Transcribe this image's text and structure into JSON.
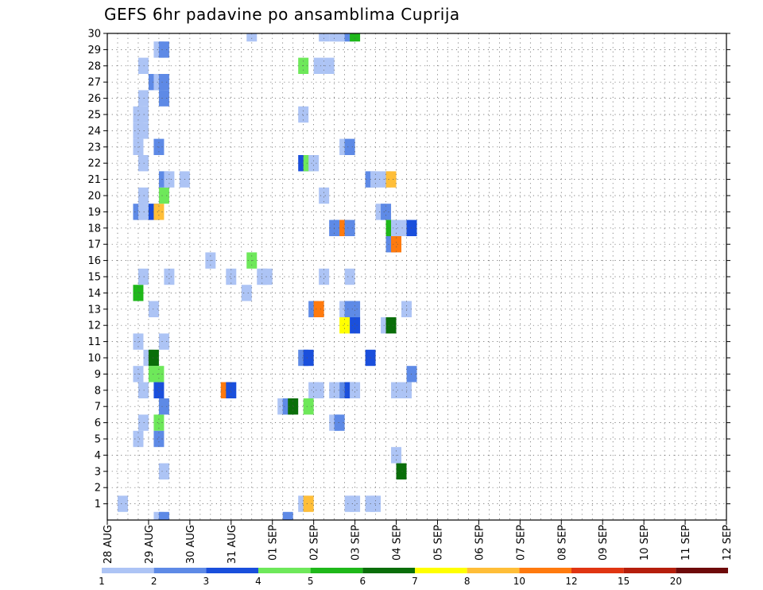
{
  "chart_data": {
    "type": "heatmap",
    "title": "GEFS 6hr padavine po ansamblima Cuprija",
    "x_tick_labels": [
      "28 AUG",
      "29 AUG",
      "30 AUG",
      "31 AUG",
      "01 SEP",
      "02 SEP",
      "03 SEP",
      "04 SEP",
      "05 SEP",
      "06 SEP",
      "07 SEP",
      "08 SEP",
      "09 SEP",
      "10 SEP",
      "11 SEP",
      "12 SEP"
    ],
    "y_tick_labels": [
      "1",
      "2",
      "3",
      "4",
      "5",
      "6",
      "7",
      "8",
      "9",
      "10",
      "11",
      "12",
      "13",
      "14",
      "15",
      "16",
      "17",
      "18",
      "19",
      "20",
      "21",
      "22",
      "23",
      "24",
      "25",
      "26",
      "27",
      "28",
      "29",
      "30"
    ],
    "xlim": [
      0,
      60
    ],
    "ylim": [
      0,
      30
    ],
    "grid": true,
    "colorbar_labels": [
      "1",
      "2",
      "3",
      "4",
      "5",
      "6",
      "7",
      "8",
      "10",
      "12",
      "15",
      "20"
    ],
    "colorbar_colors": [
      "#adc4f5",
      "#5e8ae6",
      "#1a4fdc",
      "#6ee85a",
      "#1fb81a",
      "#0a6e0a",
      "#ffff00",
      "#ffbe38",
      "#ff7a0e",
      "#e03512",
      "#b51e0c",
      "#6e0a0a"
    ],
    "cells": [
      {
        "x": 1.5,
        "y": 1,
        "v": 1
      },
      {
        "x": 3.0,
        "y": 9,
        "v": 1
      },
      {
        "x": 3.0,
        "y": 11,
        "v": 1
      },
      {
        "x": 3.0,
        "y": 24,
        "v": 1
      },
      {
        "x": 3.0,
        "y": 25,
        "v": 1
      },
      {
        "x": 3.0,
        "y": 5,
        "v": 1
      },
      {
        "x": 3.0,
        "y": 23,
        "v": 1
      },
      {
        "x": 3.0,
        "y": 19,
        "v": 2
      },
      {
        "x": 3.0,
        "y": 14,
        "v": 5
      },
      {
        "x": 3.5,
        "y": 8,
        "v": 1
      },
      {
        "x": 3.5,
        "y": 6,
        "v": 1
      },
      {
        "x": 3.5,
        "y": 15,
        "v": 1
      },
      {
        "x": 3.5,
        "y": 20,
        "v": 1
      },
      {
        "x": 3.5,
        "y": 22,
        "v": 1
      },
      {
        "x": 3.5,
        "y": 24,
        "v": 1
      },
      {
        "x": 3.5,
        "y": 25,
        "v": 1
      },
      {
        "x": 3.5,
        "y": 26,
        "v": 1
      },
      {
        "x": 3.5,
        "y": 28,
        "v": 1
      },
      {
        "x": 3.5,
        "y": 19,
        "v": 1
      },
      {
        "x": 4.0,
        "y": 19,
        "v": 1
      },
      {
        "x": 4.0,
        "y": 10,
        "v": 1
      },
      {
        "x": 4.5,
        "y": 13,
        "v": 1
      },
      {
        "x": 4.5,
        "y": 10,
        "v": 6
      },
      {
        "x": 4.5,
        "y": 9,
        "v": 4
      },
      {
        "x": 4.5,
        "y": 19,
        "v": 3
      },
      {
        "x": 4.5,
        "y": 27,
        "v": 2
      },
      {
        "x": 5.0,
        "y": 9,
        "v": 4
      },
      {
        "x": 5.0,
        "y": 6,
        "v": 4
      },
      {
        "x": 5.0,
        "y": 5,
        "v": 2
      },
      {
        "x": 5.0,
        "y": 8,
        "v": 3
      },
      {
        "x": 5.0,
        "y": 19,
        "v": 8
      },
      {
        "x": 5.0,
        "y": 23,
        "v": 2
      },
      {
        "x": 5.0,
        "y": 27,
        "v": 1
      },
      {
        "x": 5.0,
        "y": 29,
        "v": 1
      },
      {
        "x": 5.0,
        "y": 0,
        "v": 1
      },
      {
        "x": 5.5,
        "y": 3,
        "v": 1
      },
      {
        "x": 5.5,
        "y": 7,
        "v": 2
      },
      {
        "x": 5.5,
        "y": 11,
        "v": 1
      },
      {
        "x": 5.5,
        "y": 20,
        "v": 4
      },
      {
        "x": 5.5,
        "y": 21,
        "v": 2
      },
      {
        "x": 5.5,
        "y": 26,
        "v": 2
      },
      {
        "x": 5.5,
        "y": 27,
        "v": 2
      },
      {
        "x": 5.5,
        "y": 29,
        "v": 2
      },
      {
        "x": 5.5,
        "y": 0,
        "v": 2
      },
      {
        "x": 6.0,
        "y": 15,
        "v": 1
      },
      {
        "x": 6.0,
        "y": 21,
        "v": 1
      },
      {
        "x": 7.5,
        "y": 21,
        "v": 1
      },
      {
        "x": 10.0,
        "y": 16,
        "v": 1
      },
      {
        "x": 11.5,
        "y": 8,
        "v": 9
      },
      {
        "x": 12.0,
        "y": 15,
        "v": 1
      },
      {
        "x": 12.0,
        "y": 8,
        "v": 3
      },
      {
        "x": 13.5,
        "y": 14,
        "v": 1
      },
      {
        "x": 14.0,
        "y": 30,
        "v": 1
      },
      {
        "x": 14.0,
        "y": 16,
        "v": 4
      },
      {
        "x": 15.0,
        "y": 15,
        "v": 1
      },
      {
        "x": 15.5,
        "y": 15,
        "v": 1
      },
      {
        "x": 17.0,
        "y": 7,
        "v": 1
      },
      {
        "x": 17.5,
        "y": 7,
        "v": 2
      },
      {
        "x": 17.5,
        "y": 0,
        "v": 2
      },
      {
        "x": 18.0,
        "y": 7,
        "v": 6
      },
      {
        "x": 19.0,
        "y": 28,
        "v": 4
      },
      {
        "x": 19.0,
        "y": 25,
        "v": 1
      },
      {
        "x": 19.0,
        "y": 22,
        "v": 3
      },
      {
        "x": 19.0,
        "y": 10,
        "v": 2
      },
      {
        "x": 19.0,
        "y": 1,
        "v": 1
      },
      {
        "x": 19.5,
        "y": 22,
        "v": 4
      },
      {
        "x": 19.5,
        "y": 10,
        "v": 3
      },
      {
        "x": 19.5,
        "y": 7,
        "v": 4
      },
      {
        "x": 19.5,
        "y": 1,
        "v": 8
      },
      {
        "x": 20.0,
        "y": 22,
        "v": 1
      },
      {
        "x": 20.0,
        "y": 13,
        "v": 2
      },
      {
        "x": 20.0,
        "y": 8,
        "v": 1
      },
      {
        "x": 20.5,
        "y": 28,
        "v": 1
      },
      {
        "x": 20.5,
        "y": 13,
        "v": 9
      },
      {
        "x": 20.5,
        "y": 8,
        "v": 1
      },
      {
        "x": 21.0,
        "y": 30,
        "v": 1
      },
      {
        "x": 21.0,
        "y": 20,
        "v": 1
      },
      {
        "x": 21.0,
        "y": 15,
        "v": 1
      },
      {
        "x": 21.5,
        "y": 28,
        "v": 1
      },
      {
        "x": 22.0,
        "y": 30,
        "v": 1
      },
      {
        "x": 22.0,
        "y": 18,
        "v": 2
      },
      {
        "x": 22.0,
        "y": 8,
        "v": 1
      },
      {
        "x": 22.0,
        "y": 6,
        "v": 1
      },
      {
        "x": 22.5,
        "y": 30,
        "v": 1
      },
      {
        "x": 22.5,
        "y": 18,
        "v": 2
      },
      {
        "x": 22.5,
        "y": 6,
        "v": 2
      },
      {
        "x": 23.0,
        "y": 30,
        "v": 1
      },
      {
        "x": 23.0,
        "y": 23,
        "v": 1
      },
      {
        "x": 23.0,
        "y": 18,
        "v": 9
      },
      {
        "x": 23.0,
        "y": 13,
        "v": 1
      },
      {
        "x": 23.0,
        "y": 12,
        "v": 7
      },
      {
        "x": 23.0,
        "y": 8,
        "v": 2
      },
      {
        "x": 23.5,
        "y": 30,
        "v": 2
      },
      {
        "x": 23.5,
        "y": 23,
        "v": 2
      },
      {
        "x": 23.5,
        "y": 18,
        "v": 2
      },
      {
        "x": 23.5,
        "y": 15,
        "v": 1
      },
      {
        "x": 23.5,
        "y": 13,
        "v": 2
      },
      {
        "x": 23.5,
        "y": 8,
        "v": 3
      },
      {
        "x": 23.5,
        "y": 1,
        "v": 1
      },
      {
        "x": 24.0,
        "y": 30,
        "v": 5
      },
      {
        "x": 24.0,
        "y": 13,
        "v": 2
      },
      {
        "x": 24.0,
        "y": 12,
        "v": 3
      },
      {
        "x": 24.0,
        "y": 8,
        "v": 1
      },
      {
        "x": 24.0,
        "y": 1,
        "v": 1
      },
      {
        "x": 25.5,
        "y": 21,
        "v": 2
      },
      {
        "x": 25.5,
        "y": 10,
        "v": 3
      },
      {
        "x": 25.5,
        "y": 1,
        "v": 1
      },
      {
        "x": 26.0,
        "y": 21,
        "v": 1
      },
      {
        "x": 26.0,
        "y": 1,
        "v": 1
      },
      {
        "x": 26.5,
        "y": 19,
        "v": 1
      },
      {
        "x": 27.0,
        "y": 21,
        "v": 1
      },
      {
        "x": 27.0,
        "y": 19,
        "v": 2
      },
      {
        "x": 27.0,
        "y": 12,
        "v": 1
      },
      {
        "x": 27.5,
        "y": 21,
        "v": 8
      },
      {
        "x": 27.5,
        "y": 18,
        "v": 5
      },
      {
        "x": 27.5,
        "y": 17,
        "v": 2
      },
      {
        "x": 27.5,
        "y": 12,
        "v": 6
      },
      {
        "x": 28.0,
        "y": 18,
        "v": 1
      },
      {
        "x": 28.0,
        "y": 17,
        "v": 9
      },
      {
        "x": 28.0,
        "y": 8,
        "v": 1
      },
      {
        "x": 28.0,
        "y": 4,
        "v": 1
      },
      {
        "x": 28.5,
        "y": 3,
        "v": 6
      },
      {
        "x": 29.0,
        "y": 18,
        "v": 1
      },
      {
        "x": 29.0,
        "y": 13,
        "v": 1
      },
      {
        "x": 29.0,
        "y": 8,
        "v": 1
      },
      {
        "x": 29.5,
        "y": 18,
        "v": 3
      },
      {
        "x": 29.5,
        "y": 9,
        "v": 2
      }
    ]
  }
}
